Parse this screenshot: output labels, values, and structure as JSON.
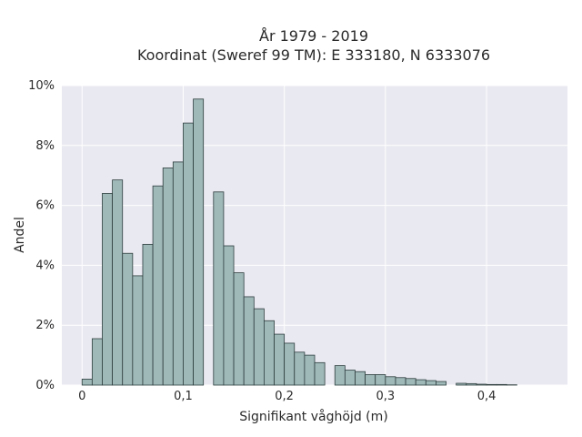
{
  "chart_data": {
    "type": "bar",
    "title_line1": "År 1979 - 2019",
    "title_line2": "Koordinat (Sweref 99 TM): E 333180, N 6333076",
    "xlabel": "Signifikant våghöjd (m)",
    "ylabel": "Andel",
    "xlim": [
      -0.02,
      0.48
    ],
    "ylim": [
      0,
      10
    ],
    "grid": true,
    "bin_width": 0.01,
    "x_ticks": [
      {
        "value": 0,
        "label": "0"
      },
      {
        "value": 0.1,
        "label": "0,1"
      },
      {
        "value": 0.2,
        "label": "0,2"
      },
      {
        "value": 0.3,
        "label": "0,3"
      },
      {
        "value": 0.4,
        "label": "0,4"
      }
    ],
    "y_ticks": [
      {
        "value": 0,
        "label": "0%"
      },
      {
        "value": 2,
        "label": "2%"
      },
      {
        "value": 4,
        "label": "4%"
      },
      {
        "value": 6,
        "label": "6%"
      },
      {
        "value": 8,
        "label": "8%"
      },
      {
        "value": 10,
        "label": "10%"
      }
    ],
    "bins": [
      {
        "x0": 0.0,
        "value": 0.2
      },
      {
        "x0": 0.01,
        "value": 1.55
      },
      {
        "x0": 0.02,
        "value": 6.4
      },
      {
        "x0": 0.03,
        "value": 6.85
      },
      {
        "x0": 0.04,
        "value": 4.4
      },
      {
        "x0": 0.05,
        "value": 3.65
      },
      {
        "x0": 0.06,
        "value": 4.7
      },
      {
        "x0": 0.07,
        "value": 6.65
      },
      {
        "x0": 0.08,
        "value": 7.25
      },
      {
        "x0": 0.09,
        "value": 7.45
      },
      {
        "x0": 0.1,
        "value": 8.75
      },
      {
        "x0": 0.11,
        "value": 9.55
      },
      {
        "x0": 0.13,
        "value": 6.45
      },
      {
        "x0": 0.14,
        "value": 4.65
      },
      {
        "x0": 0.15,
        "value": 3.75
      },
      {
        "x0": 0.16,
        "value": 2.95
      },
      {
        "x0": 0.17,
        "value": 2.55
      },
      {
        "x0": 0.18,
        "value": 2.15
      },
      {
        "x0": 0.19,
        "value": 1.7
      },
      {
        "x0": 0.2,
        "value": 1.4
      },
      {
        "x0": 0.21,
        "value": 1.1
      },
      {
        "x0": 0.22,
        "value": 1.0
      },
      {
        "x0": 0.23,
        "value": 0.75
      },
      {
        "x0": 0.25,
        "value": 0.65
      },
      {
        "x0": 0.26,
        "value": 0.5
      },
      {
        "x0": 0.27,
        "value": 0.45
      },
      {
        "x0": 0.28,
        "value": 0.35
      },
      {
        "x0": 0.29,
        "value": 0.35
      },
      {
        "x0": 0.3,
        "value": 0.28
      },
      {
        "x0": 0.31,
        "value": 0.25
      },
      {
        "x0": 0.32,
        "value": 0.22
      },
      {
        "x0": 0.33,
        "value": 0.18
      },
      {
        "x0": 0.34,
        "value": 0.15
      },
      {
        "x0": 0.35,
        "value": 0.12
      },
      {
        "x0": 0.37,
        "value": 0.06
      },
      {
        "x0": 0.38,
        "value": 0.05
      },
      {
        "x0": 0.39,
        "value": 0.03
      },
      {
        "x0": 0.4,
        "value": 0.02
      },
      {
        "x0": 0.41,
        "value": 0.02
      },
      {
        "x0": 0.42,
        "value": 0.01
      }
    ],
    "colors": {
      "bar_fill": "#9fb8b8",
      "bar_stroke": "#2f3f3f",
      "plot_bg": "#e9e9f1",
      "grid": "#ffffff"
    }
  }
}
